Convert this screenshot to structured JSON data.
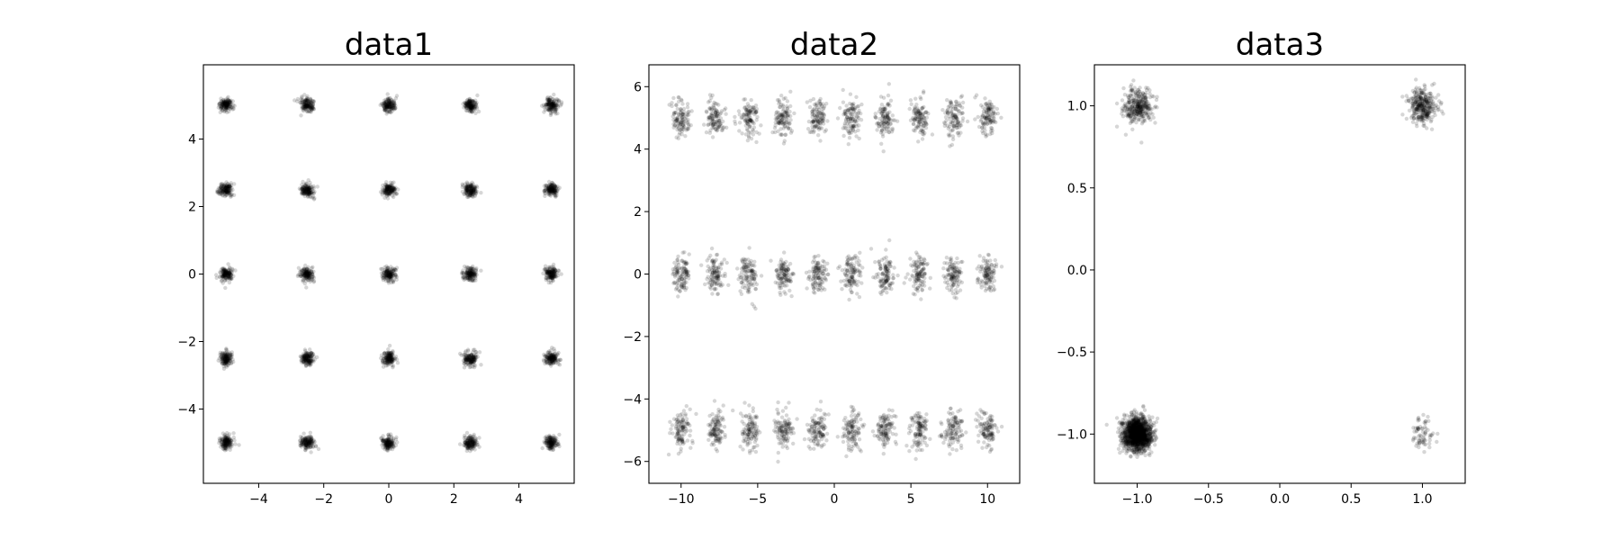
{
  "chart_data": [
    {
      "type": "scatter",
      "title": "data1",
      "xlabel": "",
      "ylabel": "",
      "xlim": [
        -5.7,
        5.7
      ],
      "ylim": [
        -6.2,
        6.2
      ],
      "xticks": [
        -4,
        -2,
        0,
        2,
        4
      ],
      "yticks": [
        -4,
        -2,
        0,
        2,
        4
      ],
      "grid": false,
      "marker_color": "#000000",
      "clusters": [
        {
          "x": -5,
          "y": 5,
          "n": 150,
          "sx": 0.1,
          "sy": 0.1
        },
        {
          "x": -2.5,
          "y": 5,
          "n": 150,
          "sx": 0.1,
          "sy": 0.1
        },
        {
          "x": 0,
          "y": 5,
          "n": 150,
          "sx": 0.1,
          "sy": 0.1
        },
        {
          "x": 2.5,
          "y": 5,
          "n": 150,
          "sx": 0.1,
          "sy": 0.1
        },
        {
          "x": 5,
          "y": 5,
          "n": 150,
          "sx": 0.1,
          "sy": 0.1
        },
        {
          "x": -5,
          "y": 2.5,
          "n": 150,
          "sx": 0.1,
          "sy": 0.1
        },
        {
          "x": -2.5,
          "y": 2.5,
          "n": 150,
          "sx": 0.1,
          "sy": 0.1
        },
        {
          "x": 0,
          "y": 2.5,
          "n": 150,
          "sx": 0.1,
          "sy": 0.1
        },
        {
          "x": 2.5,
          "y": 2.5,
          "n": 150,
          "sx": 0.1,
          "sy": 0.1
        },
        {
          "x": 5,
          "y": 2.5,
          "n": 150,
          "sx": 0.1,
          "sy": 0.1
        },
        {
          "x": -5,
          "y": 0,
          "n": 150,
          "sx": 0.1,
          "sy": 0.1
        },
        {
          "x": -2.5,
          "y": 0,
          "n": 150,
          "sx": 0.1,
          "sy": 0.1
        },
        {
          "x": 0,
          "y": 0,
          "n": 150,
          "sx": 0.1,
          "sy": 0.1
        },
        {
          "x": 2.5,
          "y": 0,
          "n": 150,
          "sx": 0.1,
          "sy": 0.1
        },
        {
          "x": 5,
          "y": 0,
          "n": 150,
          "sx": 0.1,
          "sy": 0.1
        },
        {
          "x": -5,
          "y": -2.5,
          "n": 150,
          "sx": 0.1,
          "sy": 0.1
        },
        {
          "x": -2.5,
          "y": -2.5,
          "n": 150,
          "sx": 0.1,
          "sy": 0.1
        },
        {
          "x": 0,
          "y": -2.5,
          "n": 150,
          "sx": 0.1,
          "sy": 0.1
        },
        {
          "x": 2.5,
          "y": -2.5,
          "n": 150,
          "sx": 0.1,
          "sy": 0.1
        },
        {
          "x": 5,
          "y": -2.5,
          "n": 150,
          "sx": 0.1,
          "sy": 0.1
        },
        {
          "x": -5,
          "y": -5,
          "n": 150,
          "sx": 0.1,
          "sy": 0.1
        },
        {
          "x": -2.5,
          "y": -5,
          "n": 150,
          "sx": 0.1,
          "sy": 0.1
        },
        {
          "x": 0,
          "y": -5,
          "n": 150,
          "sx": 0.1,
          "sy": 0.1
        },
        {
          "x": 2.5,
          "y": -5,
          "n": 150,
          "sx": 0.1,
          "sy": 0.1
        },
        {
          "x": 5,
          "y": -5,
          "n": 150,
          "sx": 0.1,
          "sy": 0.1
        }
      ]
    },
    {
      "type": "scatter",
      "title": "data2",
      "xlabel": "",
      "ylabel": "",
      "xlim": [
        -12.1,
        12.1
      ],
      "ylim": [
        -6.7,
        6.7
      ],
      "xticks": [
        -10,
        -5,
        0,
        5,
        10
      ],
      "yticks": [
        -6,
        -4,
        -2,
        0,
        2,
        4,
        6
      ],
      "grid": false,
      "marker_color": "#000000",
      "clusters": [
        {
          "x": -10,
          "y": 5,
          "n": 110,
          "sx": 0.3,
          "sy": 0.3
        },
        {
          "x": -7.78,
          "y": 5,
          "n": 110,
          "sx": 0.3,
          "sy": 0.3
        },
        {
          "x": -5.56,
          "y": 5,
          "n": 110,
          "sx": 0.3,
          "sy": 0.3
        },
        {
          "x": -3.33,
          "y": 5,
          "n": 110,
          "sx": 0.3,
          "sy": 0.3
        },
        {
          "x": -1.11,
          "y": 5,
          "n": 110,
          "sx": 0.3,
          "sy": 0.3
        },
        {
          "x": 1.11,
          "y": 5,
          "n": 110,
          "sx": 0.3,
          "sy": 0.3
        },
        {
          "x": 3.33,
          "y": 5,
          "n": 110,
          "sx": 0.3,
          "sy": 0.3
        },
        {
          "x": 5.56,
          "y": 5,
          "n": 110,
          "sx": 0.3,
          "sy": 0.3
        },
        {
          "x": 7.78,
          "y": 5,
          "n": 110,
          "sx": 0.3,
          "sy": 0.3
        },
        {
          "x": 10,
          "y": 5,
          "n": 110,
          "sx": 0.3,
          "sy": 0.3
        },
        {
          "x": -10,
          "y": 0,
          "n": 110,
          "sx": 0.3,
          "sy": 0.3
        },
        {
          "x": -7.78,
          "y": 0,
          "n": 110,
          "sx": 0.3,
          "sy": 0.3
        },
        {
          "x": -5.56,
          "y": 0,
          "n": 110,
          "sx": 0.3,
          "sy": 0.3
        },
        {
          "x": -3.33,
          "y": 0,
          "n": 110,
          "sx": 0.3,
          "sy": 0.3
        },
        {
          "x": -1.11,
          "y": 0,
          "n": 110,
          "sx": 0.3,
          "sy": 0.3
        },
        {
          "x": 1.11,
          "y": 0,
          "n": 110,
          "sx": 0.3,
          "sy": 0.3
        },
        {
          "x": 3.33,
          "y": 0,
          "n": 110,
          "sx": 0.3,
          "sy": 0.3
        },
        {
          "x": 5.56,
          "y": 0,
          "n": 110,
          "sx": 0.3,
          "sy": 0.3
        },
        {
          "x": 7.78,
          "y": 0,
          "n": 110,
          "sx": 0.3,
          "sy": 0.3
        },
        {
          "x": 10,
          "y": 0,
          "n": 110,
          "sx": 0.3,
          "sy": 0.3
        },
        {
          "x": -10,
          "y": -5,
          "n": 110,
          "sx": 0.3,
          "sy": 0.3
        },
        {
          "x": -7.78,
          "y": -5,
          "n": 110,
          "sx": 0.3,
          "sy": 0.3
        },
        {
          "x": -5.56,
          "y": -5,
          "n": 110,
          "sx": 0.3,
          "sy": 0.3
        },
        {
          "x": -3.33,
          "y": -5,
          "n": 110,
          "sx": 0.3,
          "sy": 0.3
        },
        {
          "x": -1.11,
          "y": -5,
          "n": 110,
          "sx": 0.3,
          "sy": 0.3
        },
        {
          "x": 1.11,
          "y": -5,
          "n": 110,
          "sx": 0.3,
          "sy": 0.3
        },
        {
          "x": 3.33,
          "y": -5,
          "n": 110,
          "sx": 0.3,
          "sy": 0.3
        },
        {
          "x": 5.56,
          "y": -5,
          "n": 110,
          "sx": 0.3,
          "sy": 0.3
        },
        {
          "x": 7.78,
          "y": -5,
          "n": 110,
          "sx": 0.3,
          "sy": 0.3
        },
        {
          "x": 10,
          "y": -5,
          "n": 110,
          "sx": 0.3,
          "sy": 0.3
        }
      ]
    },
    {
      "type": "scatter",
      "title": "data3",
      "xlabel": "",
      "ylabel": "",
      "xlim": [
        -1.3,
        1.3
      ],
      "ylim": [
        -1.3,
        1.25
      ],
      "xticks": [
        -1.0,
        -0.5,
        0.0,
        0.5,
        1.0
      ],
      "yticks": [
        -1.0,
        -0.5,
        0.0,
        0.5,
        1.0
      ],
      "tick_format_decimals": 1,
      "grid": false,
      "marker_color": "#000000",
      "clusters": [
        {
          "x": -1.0,
          "y": 1.0,
          "n": 320,
          "sx": 0.05,
          "sy": 0.05
        },
        {
          "x": 1.0,
          "y": 1.0,
          "n": 320,
          "sx": 0.05,
          "sy": 0.05
        },
        {
          "x": -1.0,
          "y": -1.0,
          "n": 1400,
          "sx": 0.05,
          "sy": 0.05
        },
        {
          "x": 1.0,
          "y": -1.0,
          "n": 70,
          "sx": 0.04,
          "sy": 0.05
        }
      ]
    }
  ]
}
